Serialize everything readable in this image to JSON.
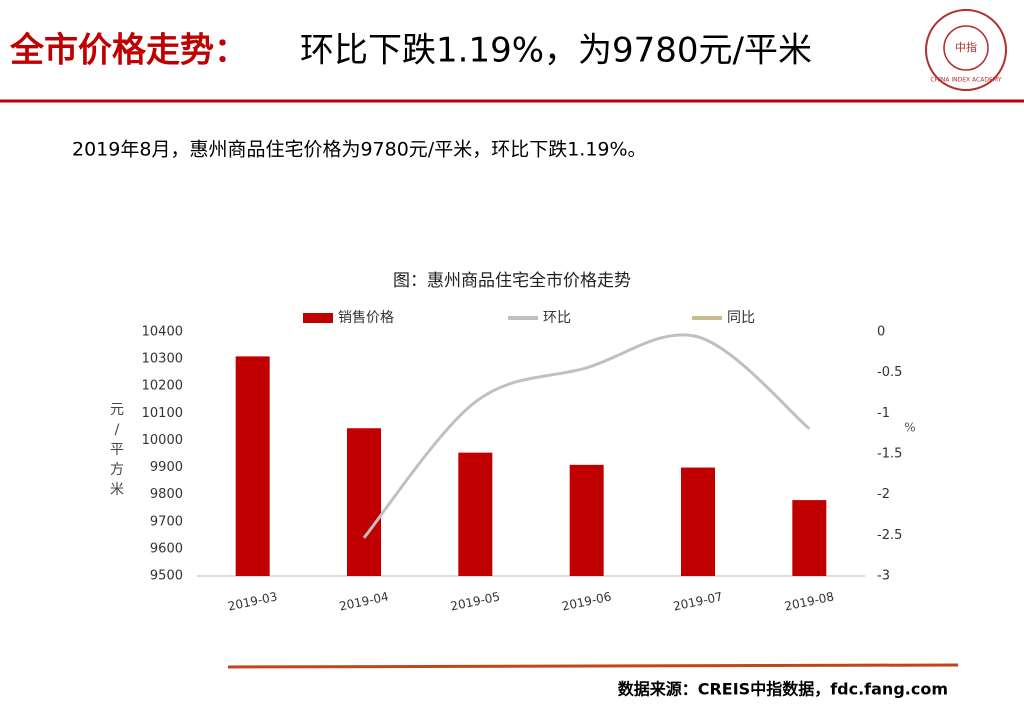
{
  "header": {
    "title_highlight": "全市价格走势：",
    "title_rest": "环比下跌1.19%，为9780元/平米",
    "logo_text": "CHINA INDEX ACADEMY",
    "logo_mark": "中指"
  },
  "summary": "2019年8月，惠州商品住宅价格为9780元/平米，环比下跌1.19%。",
  "source": "数据来源：CREIS中指数据，fdc.fang.com",
  "chart_data": {
    "type": "bar",
    "title": "图：惠州商品住宅全市价格走势",
    "categories": [
      "2019-03",
      "2019-04",
      "2019-05",
      "2019-06",
      "2019-07",
      "2019-08"
    ],
    "series": [
      {
        "name": "销售价格",
        "type": "bar",
        "color": "#c00000",
        "values": [
          10310,
          10045,
          9955,
          9910,
          9900,
          9780
        ]
      },
      {
        "name": "环比",
        "type": "line",
        "axis": "y2",
        "color": "#c0c0c0",
        "values": [
          null,
          -2.53,
          -0.86,
          -0.44,
          -0.06,
          -1.19
        ]
      },
      {
        "name": "同比",
        "type": "line",
        "axis": "y2",
        "color": "#c8bb8e",
        "values": [
          null,
          null,
          null,
          null,
          null,
          null
        ]
      }
    ],
    "ylabel": "元/平方米",
    "y2label": "%",
    "ylim": [
      9500,
      10400
    ],
    "yticks": [
      9500,
      9600,
      9700,
      9800,
      9900,
      10000,
      10100,
      10200,
      10300,
      10400
    ],
    "y2lim": [
      -3,
      0
    ],
    "y2ticks": [
      -3,
      -2.5,
      -2,
      -1.5,
      -1,
      -0.5,
      0
    ]
  }
}
